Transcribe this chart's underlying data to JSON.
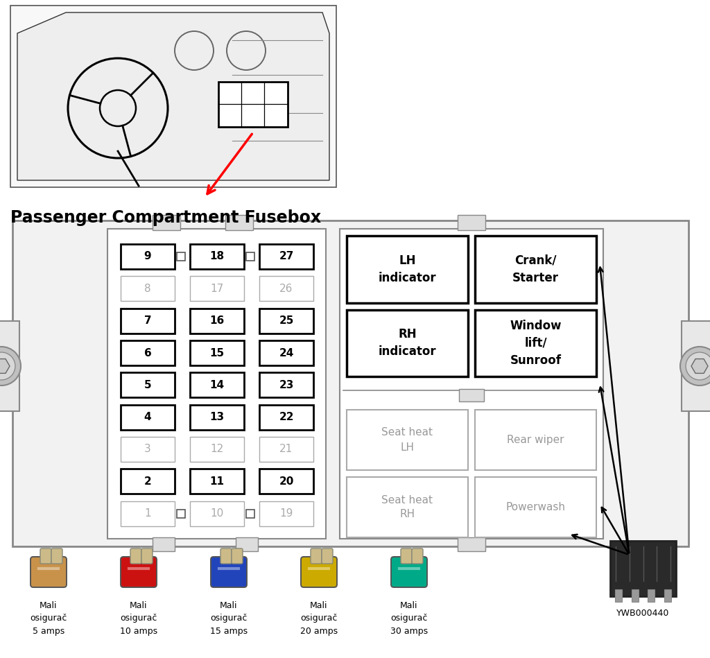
{
  "title": "Passenger Compartment Fusebox",
  "bg": "#ffffff",
  "fuse_rows": [
    {
      "nums": [
        9,
        18,
        27
      ],
      "bold": [
        true,
        true,
        true
      ],
      "connectors": true
    },
    {
      "nums": [
        8,
        17,
        26
      ],
      "bold": [
        false,
        false,
        false
      ],
      "connectors": false
    },
    {
      "nums": [
        7,
        16,
        25
      ],
      "bold": [
        true,
        true,
        true
      ],
      "connectors": false
    },
    {
      "nums": [
        6,
        15,
        24
      ],
      "bold": [
        true,
        true,
        true
      ],
      "connectors": false
    },
    {
      "nums": [
        5,
        14,
        23
      ],
      "bold": [
        true,
        true,
        true
      ],
      "connectors": false
    },
    {
      "nums": [
        4,
        13,
        22
      ],
      "bold": [
        true,
        true,
        true
      ],
      "connectors": false
    },
    {
      "nums": [
        3,
        12,
        21
      ],
      "bold": [
        false,
        false,
        false
      ],
      "connectors": false
    },
    {
      "nums": [
        2,
        11,
        20
      ],
      "bold": [
        true,
        true,
        true
      ],
      "connectors": false
    },
    {
      "nums": [
        1,
        10,
        19
      ],
      "bold": [
        false,
        false,
        false
      ],
      "connectors": true
    }
  ],
  "top_relays": [
    {
      "text": "LH\nindicator",
      "bold": true,
      "row": 0,
      "col": 0
    },
    {
      "text": "Crank/\nStarter",
      "bold": true,
      "row": 0,
      "col": 1
    },
    {
      "text": "RH\nindicator",
      "bold": true,
      "row": 1,
      "col": 0
    },
    {
      "text": "Window\nlift/\nSunroof",
      "bold": true,
      "row": 1,
      "col": 1
    }
  ],
  "bot_relays": [
    {
      "text": "Seat heat\nLH",
      "bold": false,
      "row": 0,
      "col": 0
    },
    {
      "text": "Rear wiper",
      "bold": false,
      "row": 0,
      "col": 1
    },
    {
      "text": "Seat heat\nRH",
      "bold": false,
      "row": 1,
      "col": 0
    },
    {
      "text": "Powerwash",
      "bold": false,
      "row": 1,
      "col": 1
    }
  ],
  "fuses": [
    {
      "label": "Mali\nosigurač\n5 amps",
      "color": "#c8924a"
    },
    {
      "label": "Mali\nosigurač\n10 amps",
      "color": "#cc1111"
    },
    {
      "label": "Mali\nosigurač\n15 amps",
      "color": "#2244bb"
    },
    {
      "label": "Mali\nosigurač\n20 amps",
      "color": "#ccaa00"
    },
    {
      "label": "Mali\nosigurač\n30 amps",
      "color": "#00aa88"
    }
  ],
  "relay_code": "YWB000440",
  "tab_color": "#cccccc",
  "bolt_color": "#bbbbbb",
  "box_edge": "#888888",
  "fuse_edge_bold": "#000000",
  "fuse_edge_gray": "#aaaaaa",
  "fuse_text_bold": "#000000",
  "fuse_text_gray": "#aaaaaa",
  "relay_bot_edge": "#aaaaaa",
  "relay_bot_text": "#999999"
}
